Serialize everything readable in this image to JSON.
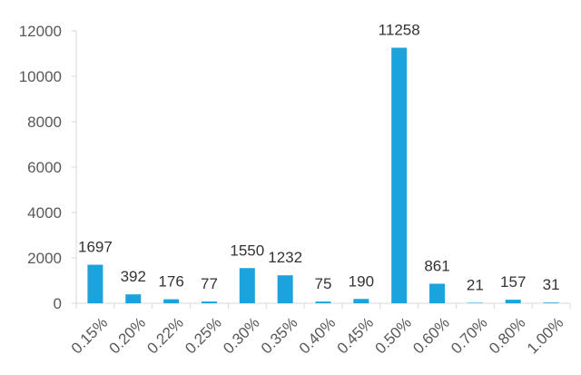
{
  "chart_data": {
    "type": "bar",
    "title": "",
    "xlabel": "",
    "ylabel": "",
    "categories": [
      "0.15%",
      "0.20%",
      "0.22%",
      "0.25%",
      "0.30%",
      "0.35%",
      "0.40%",
      "0.45%",
      "0.50%",
      "0.60%",
      "0.70%",
      "0.80%",
      "1.00%"
    ],
    "values": [
      1697,
      392,
      176,
      77,
      1550,
      1232,
      75,
      190,
      11258,
      861,
      21,
      157,
      31
    ],
    "data_labels": [
      "1697",
      "392",
      "176",
      "77",
      "1550",
      "1232",
      "75",
      "190",
      "11258",
      "861",
      "21",
      "157",
      "31"
    ],
    "yticks": [
      0,
      2000,
      4000,
      6000,
      8000,
      10000,
      12000
    ],
    "ytick_labels": [
      "0",
      "2000",
      "4000",
      "6000",
      "8000",
      "10000",
      "12000"
    ],
    "ylim": [
      0,
      12000
    ],
    "grid": false,
    "legend": "none",
    "colors": {
      "bar": "#1aa3dc",
      "axis": "#d9d9d9",
      "text": "#595959"
    }
  }
}
